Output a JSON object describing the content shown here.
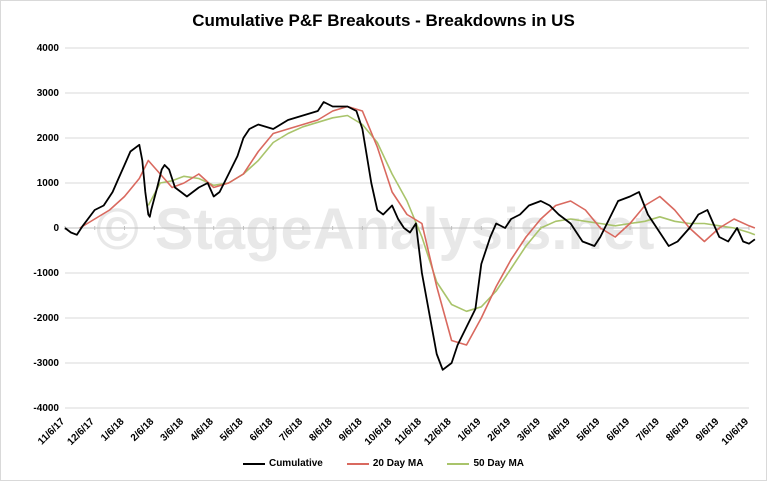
{
  "watermark": "© StageAnalysis.net",
  "chart_data": {
    "type": "line",
    "title": "Cumulative P&F Breakouts - Breakdowns in US",
    "xlabel": "",
    "ylabel": "",
    "ylim": [
      -4000,
      4000
    ],
    "yticks": [
      4000,
      3000,
      2000,
      1000,
      0,
      -1000,
      -2000,
      -3000,
      -4000
    ],
    "xticks": [
      "11/6/17",
      "12/6/17",
      "1/6/18",
      "2/6/18",
      "3/6/18",
      "4/6/18",
      "5/6/18",
      "6/6/18",
      "7/6/18",
      "8/6/18",
      "9/6/18",
      "10/6/18",
      "11/6/18",
      "12/6/18",
      "1/6/19",
      "2/6/19",
      "3/6/19",
      "4/6/19",
      "5/6/19",
      "6/6/19",
      "7/6/19",
      "8/6/19",
      "9/6/19",
      "10/6/19"
    ],
    "grid": true,
    "legend_position": "bottom",
    "colors": {
      "Cumulative": "#000000",
      "20 Day MA": "#d9695f",
      "50 Day MA": "#a9c46b"
    },
    "series": [
      {
        "name": "Cumulative",
        "x": [
          0,
          0.2,
          0.4,
          0.6,
          1.0,
          1.3,
          1.6,
          1.8,
          2.0,
          2.2,
          2.5,
          2.6,
          2.7,
          2.8,
          2.85,
          2.9,
          3.1,
          3.25,
          3.35,
          3.5,
          3.7,
          3.9,
          4.1,
          4.5,
          4.8,
          5.0,
          5.2,
          5.5,
          5.8,
          6.0,
          6.2,
          6.5,
          7.0,
          7.5,
          8.0,
          8.5,
          8.7,
          9.0,
          9.5,
          9.8,
          10.0,
          10.3,
          10.5,
          10.7,
          11.0,
          11.2,
          11.4,
          11.6,
          11.8,
          12.0,
          12.5,
          12.7,
          13.0,
          13.2,
          13.5,
          13.8,
          14.0,
          14.3,
          14.5,
          14.8,
          15.0,
          15.3,
          15.6,
          16.0,
          16.3,
          16.6,
          17.0,
          17.4,
          17.8,
          18.0,
          18.3,
          18.6,
          19.0,
          19.3,
          19.6,
          20.0,
          20.3,
          20.6,
          21.0,
          21.3,
          21.6,
          21.8,
          22.0,
          22.3,
          22.6,
          22.8,
          23.0,
          23.2
        ],
        "values": [
          0,
          -100,
          -150,
          50,
          400,
          500,
          800,
          1100,
          1400,
          1700,
          1850,
          1500,
          800,
          300,
          250,
          400,
          900,
          1300,
          1400,
          1300,
          900,
          800,
          700,
          900,
          1000,
          700,
          800,
          1200,
          1600,
          2000,
          2200,
          2300,
          2200,
          2400,
          2500,
          2600,
          2800,
          2700,
          2700,
          2600,
          2200,
          1000,
          400,
          300,
          500,
          200,
          0,
          -100,
          100,
          -1000,
          -2800,
          -3150,
          -3000,
          -2600,
          -2200,
          -1800,
          -800,
          -200,
          100,
          0,
          200,
          300,
          500,
          600,
          500,
          300,
          100,
          -300,
          -400,
          -200,
          200,
          600,
          700,
          800,
          300,
          -100,
          -400,
          -300,
          0,
          300,
          400,
          100,
          -200,
          -300,
          0,
          -300,
          -350,
          -250
        ]
      },
      {
        "name": "20 Day MA",
        "x": [
          0.5,
          1.0,
          1.5,
          2.0,
          2.5,
          2.8,
          3.2,
          3.6,
          4.0,
          4.5,
          5.0,
          5.5,
          6.0,
          6.5,
          7.0,
          7.5,
          8.0,
          8.5,
          9.0,
          9.5,
          10.0,
          10.5,
          11.0,
          11.5,
          12.0,
          12.5,
          13.0,
          13.5,
          14.0,
          14.5,
          15.0,
          15.5,
          16.0,
          16.5,
          17.0,
          17.5,
          18.0,
          18.5,
          19.0,
          19.5,
          20.0,
          20.5,
          21.0,
          21.5,
          22.0,
          22.5,
          23.0,
          23.2
        ],
        "values": [
          0,
          200,
          400,
          700,
          1100,
          1500,
          1200,
          900,
          1000,
          1200,
          900,
          1000,
          1200,
          1700,
          2100,
          2200,
          2300,
          2400,
          2600,
          2700,
          2600,
          1800,
          800,
          300,
          100,
          -1300,
          -2500,
          -2600,
          -2000,
          -1300,
          -700,
          -200,
          200,
          500,
          600,
          400,
          0,
          -200,
          100,
          500,
          700,
          400,
          0,
          -300,
          0,
          200,
          50,
          0
        ]
      },
      {
        "name": "50 Day MA",
        "x": [
          2.8,
          3.2,
          3.6,
          4.0,
          4.5,
          5.0,
          5.5,
          6.0,
          6.5,
          7.0,
          7.5,
          8.0,
          8.5,
          9.0,
          9.5,
          10.0,
          10.5,
          11.0,
          11.5,
          12.0,
          12.5,
          13.0,
          13.5,
          14.0,
          14.5,
          15.0,
          15.5,
          16.0,
          16.5,
          17.0,
          17.5,
          18.0,
          18.5,
          19.0,
          19.5,
          20.0,
          20.5,
          21.0,
          21.5,
          22.0,
          22.5,
          23.0,
          23.2
        ],
        "values": [
          500,
          1000,
          1050,
          1150,
          1100,
          950,
          1000,
          1200,
          1500,
          1900,
          2100,
          2250,
          2350,
          2450,
          2500,
          2300,
          1900,
          1200,
          600,
          -200,
          -1200,
          -1700,
          -1850,
          -1750,
          -1400,
          -900,
          -400,
          0,
          150,
          200,
          150,
          100,
          50,
          100,
          150,
          250,
          150,
          100,
          100,
          50,
          0,
          -100,
          -150
        ]
      }
    ]
  }
}
